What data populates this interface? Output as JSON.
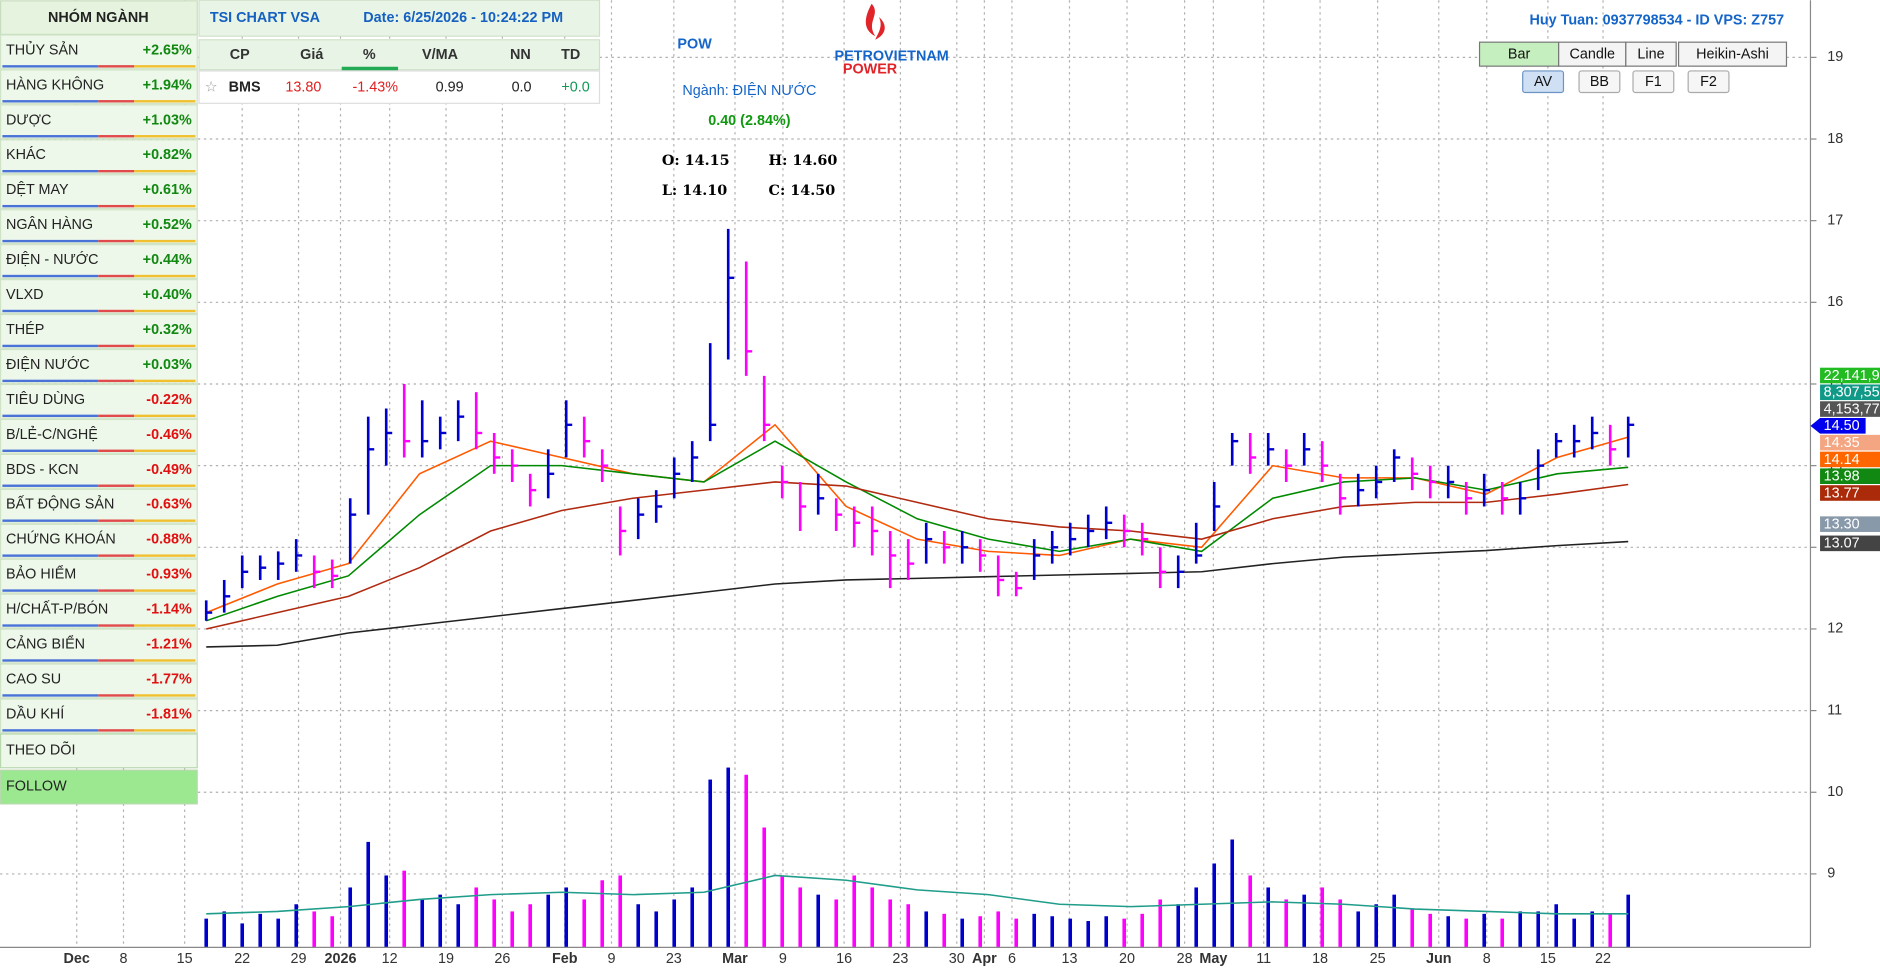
{
  "sidebar": {
    "title": "NHÓM NGÀNH",
    "sectors": [
      {
        "name": "THỦY SẢN",
        "change": "+2.65%"
      },
      {
        "name": "HÀNG KHÔNG",
        "change": "+1.94%"
      },
      {
        "name": "DƯỢC",
        "change": "+1.03%"
      },
      {
        "name": "KHÁC",
        "change": "+0.82%"
      },
      {
        "name": "DỆT MAY",
        "change": "+0.61%"
      },
      {
        "name": "NGÂN HÀNG",
        "change": "+0.52%"
      },
      {
        "name": "ĐIỆN - NƯỚC",
        "change": "+0.44%"
      },
      {
        "name": "VLXD",
        "change": "+0.40%"
      },
      {
        "name": "THÉP",
        "change": "+0.32%"
      },
      {
        "name": "ĐIỆN NƯỚC",
        "change": "+0.03%"
      },
      {
        "name": "TIÊU DÙNG",
        "change": "-0.22%"
      },
      {
        "name": "B/LẺ-C/NGHỆ",
        "change": "-0.46%"
      },
      {
        "name": "BDS - KCN",
        "change": "-0.49%"
      },
      {
        "name": "BẤT ĐỘNG SẢN",
        "change": "-0.63%"
      },
      {
        "name": "CHỨNG KHOÁN",
        "change": "-0.88%"
      },
      {
        "name": "BẢO HIỂM",
        "change": "-0.93%"
      },
      {
        "name": "H/CHẤT-P/BÓN",
        "change": "-1.14%"
      },
      {
        "name": "CẢNG BIỂN",
        "change": "-1.21%"
      },
      {
        "name": "CAO SU",
        "change": "-1.77%"
      },
      {
        "name": "DẦU KHÍ",
        "change": "-1.81%"
      }
    ],
    "links": [
      "THEO DÕI",
      "FOLLOW"
    ]
  },
  "header": {
    "app": "TSI CHART VSA",
    "date": "Date: 6/25/2026 - 10:24:22 PM"
  },
  "watchlist": {
    "columns": [
      "CP",
      "Giá",
      "%",
      "V/MA",
      "NN",
      "TD"
    ],
    "rows": [
      [
        "☆",
        "BMS",
        "13.80",
        "-1.43%",
        "0.99",
        "0.0",
        "+0.0"
      ]
    ]
  },
  "stock": {
    "symbol": "POW",
    "brand": "PETROVIETNAM",
    "brand_sub": "POWER",
    "sector": "Ngành: ĐIỆN NƯỚC",
    "change": "0.40 (2.84%)",
    "ohlc": [
      "O: 14.15",
      "H: 14.60",
      "L: 14.10",
      "C: 14.50"
    ]
  },
  "user": "Huy Tuan: 0937798534 - ID VPS: Z757",
  "chart_types": [
    "Bar",
    "Candle",
    "Line",
    "Heikin-Ashi"
  ],
  "selected_chart_type": "Bar",
  "indicators": [
    "AV",
    "BB",
    "F1",
    "F2"
  ],
  "selected_indicator": "AV",
  "chart_data": {
    "type": "ohlc",
    "ylim": [
      8.1,
      19.7
    ],
    "yticks": [
      9,
      10,
      11,
      12,
      13,
      14,
      15,
      16,
      17,
      18,
      19
    ],
    "grid": true,
    "up_color": "#0000cc",
    "down_color": "#ff00ff",
    "xlabels": [
      "Dec",
      "8",
      "15",
      "22",
      "29",
      "2026",
      "12",
      "19",
      "26",
      "Feb",
      "9",
      "23",
      "Mar",
      "9",
      "16",
      "23",
      "30",
      "Apr",
      "6",
      "13",
      "20",
      "28",
      "May",
      "11",
      "18",
      "25",
      "Jun",
      "8",
      "15",
      "22"
    ],
    "high": [
      12.35,
      12.6,
      12.9,
      12.9,
      12.95,
      13.1,
      12.9,
      12.85,
      13.6,
      14.6,
      14.7,
      15.0,
      14.8,
      14.6,
      14.8,
      14.9,
      14.4,
      14.2,
      13.9,
      14.2,
      14.8,
      14.6,
      14.2,
      13.5,
      13.6,
      13.7,
      14.1,
      14.3,
      15.5,
      16.9,
      16.5,
      15.1,
      14.0,
      13.8,
      13.9,
      13.6,
      13.5,
      13.5,
      13.2,
      13.1,
      13.3,
      13.2,
      13.2,
      13.1,
      12.9,
      12.7,
      13.1,
      13.2,
      13.3,
      13.4,
      13.5,
      13.4,
      13.3,
      13.0,
      12.9,
      13.3,
      13.8,
      14.4,
      14.4,
      14.4,
      14.2,
      14.4,
      14.3,
      13.9,
      13.9,
      14.0,
      14.2,
      14.1,
      14.0,
      14.0,
      13.8,
      13.9,
      13.8,
      13.8,
      14.2,
      14.4,
      14.5,
      14.6,
      14.5,
      14.6
    ],
    "low": [
      12.1,
      12.2,
      12.5,
      12.6,
      12.6,
      12.7,
      12.5,
      12.5,
      12.8,
      13.4,
      14.0,
      14.1,
      14.1,
      14.2,
      14.3,
      14.2,
      13.9,
      13.8,
      13.5,
      13.6,
      14.1,
      14.1,
      13.8,
      12.9,
      13.1,
      13.3,
      13.6,
      13.8,
      14.3,
      15.3,
      15.1,
      14.3,
      13.6,
      13.2,
      13.4,
      13.2,
      13.0,
      12.9,
      12.5,
      12.6,
      12.8,
      12.8,
      12.8,
      12.7,
      12.4,
      12.4,
      12.6,
      12.8,
      12.9,
      13.0,
      13.1,
      13.0,
      12.9,
      12.5,
      12.5,
      12.8,
      13.2,
      14.0,
      13.9,
      14.0,
      13.8,
      14.0,
      13.8,
      13.4,
      13.5,
      13.6,
      13.8,
      13.7,
      13.6,
      13.6,
      13.4,
      13.5,
      13.4,
      13.4,
      13.7,
      14.1,
      14.1,
      14.2,
      14.0,
      14.1
    ],
    "close": [
      12.2,
      12.4,
      12.7,
      12.75,
      12.8,
      12.9,
      12.7,
      12.65,
      13.4,
      14.2,
      14.4,
      14.3,
      14.3,
      14.4,
      14.6,
      14.4,
      14.1,
      14.0,
      13.7,
      13.9,
      14.5,
      14.3,
      14.0,
      13.2,
      13.4,
      13.5,
      13.9,
      14.1,
      14.5,
      16.3,
      15.4,
      14.5,
      13.8,
      13.5,
      13.6,
      13.4,
      13.3,
      13.2,
      12.9,
      12.8,
      13.1,
      13.0,
      13.0,
      12.9,
      12.6,
      12.5,
      12.9,
      13.0,
      13.1,
      13.2,
      13.3,
      13.2,
      13.1,
      12.7,
      12.7,
      12.9,
      13.5,
      14.3,
      14.1,
      14.2,
      14.0,
      14.2,
      14.0,
      13.6,
      13.7,
      13.8,
      14.1,
      13.9,
      13.8,
      13.8,
      13.6,
      13.7,
      13.6,
      13.6,
      14.0,
      14.3,
      14.3,
      14.4,
      14.2,
      14.5
    ],
    "volume": [
      12,
      15,
      10,
      14,
      12,
      18,
      15,
      13,
      25,
      44,
      30,
      32,
      20,
      22,
      18,
      25,
      20,
      15,
      18,
      22,
      25,
      20,
      28,
      30,
      18,
      15,
      20,
      25,
      70,
      75,
      72,
      50,
      30,
      25,
      22,
      20,
      30,
      25,
      20,
      18,
      15,
      14,
      12,
      13,
      15,
      12,
      14,
      13,
      12,
      11,
      13,
      12,
      14,
      20,
      18,
      25,
      35,
      45,
      30,
      25,
      20,
      22,
      25,
      20,
      15,
      18,
      22,
      16,
      14,
      13,
      12,
      14,
      12,
      15,
      15,
      18,
      12,
      15,
      14,
      22
    ],
    "series": [
      {
        "color": "#ff5a00",
        "values": [
          12.2,
          12.55,
          12.8,
          13.9,
          14.3,
          14.1,
          13.9,
          13.8,
          14.5,
          13.5,
          13.1,
          12.95,
          12.9,
          13.1,
          13.0,
          14.0,
          13.85,
          13.85,
          13.65,
          14.1,
          14.35
        ]
      },
      {
        "color": "#008a00",
        "values": [
          12.1,
          12.4,
          12.65,
          13.4,
          14.0,
          14.0,
          13.9,
          13.8,
          14.3,
          13.8,
          13.35,
          13.1,
          12.95,
          13.1,
          12.95,
          13.6,
          13.8,
          13.85,
          13.7,
          13.9,
          13.98
        ]
      },
      {
        "color": "#b02a10",
        "values": [
          12.0,
          12.2,
          12.4,
          12.75,
          13.2,
          13.45,
          13.6,
          13.7,
          13.8,
          13.75,
          13.55,
          13.35,
          13.25,
          13.2,
          13.1,
          13.35,
          13.5,
          13.55,
          13.55,
          13.65,
          13.77
        ]
      },
      {
        "color": "#222222",
        "values": [
          11.78,
          11.8,
          11.95,
          12.05,
          12.15,
          12.25,
          12.35,
          12.45,
          12.55,
          12.6,
          12.62,
          12.64,
          12.66,
          12.68,
          12.7,
          12.8,
          12.88,
          12.92,
          12.96,
          13.02,
          13.07
        ]
      }
    ],
    "volume_ma": {
      "color": "#1f9d8a",
      "values": [
        14,
        15,
        17,
        20,
        22,
        23,
        22,
        23,
        30,
        28,
        24,
        22,
        18,
        17,
        18,
        19,
        18,
        16,
        15,
        14,
        14
      ]
    },
    "price_labels": [
      {
        "label": "22,141,9",
        "color": "#22bb22"
      },
      {
        "label": "8,307,55",
        "color": "#119988"
      },
      {
        "label": "4,153,77",
        "color": "#555555"
      },
      {
        "label": "14.50",
        "color": "#0000ee"
      },
      {
        "label": "14.35",
        "color": "#f4a582"
      },
      {
        "label": "14.14",
        "color": "#ff6600"
      },
      {
        "label": "13.98",
        "color": "#118811"
      },
      {
        "label": "13.77",
        "color": "#aa2a0a"
      },
      {
        "label": "13.30",
        "color": "#8899aa"
      },
      {
        "label": "13.07",
        "color": "#444444"
      }
    ]
  }
}
